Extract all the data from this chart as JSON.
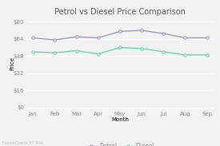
{
  "title": "Petrol vs Diesel Price Comparison",
  "xlabel": "Month",
  "ylabel": "Price",
  "months": [
    "Jan",
    "Feb",
    "Mar",
    "Apr",
    "May",
    "Jun",
    "Jul",
    "Aug",
    "Sep"
  ],
  "petrol": [
    65,
    63,
    66,
    65,
    71,
    72,
    69,
    65,
    65
  ],
  "diesel": [
    52,
    51,
    53,
    50,
    56,
    55,
    52,
    49,
    49
  ],
  "petrol_color": "#9b8abf",
  "diesel_color": "#5ecfb1",
  "bg_color": "#f2f2f2",
  "plot_bg_color": "#f2f2f2",
  "yticks": [
    0,
    16,
    32,
    48,
    64,
    80
  ],
  "ylim": [
    -2,
    84
  ],
  "title_fontsize": 7,
  "axis_fontsize": 5,
  "tick_fontsize": 5,
  "legend_fontsize": 5.5
}
